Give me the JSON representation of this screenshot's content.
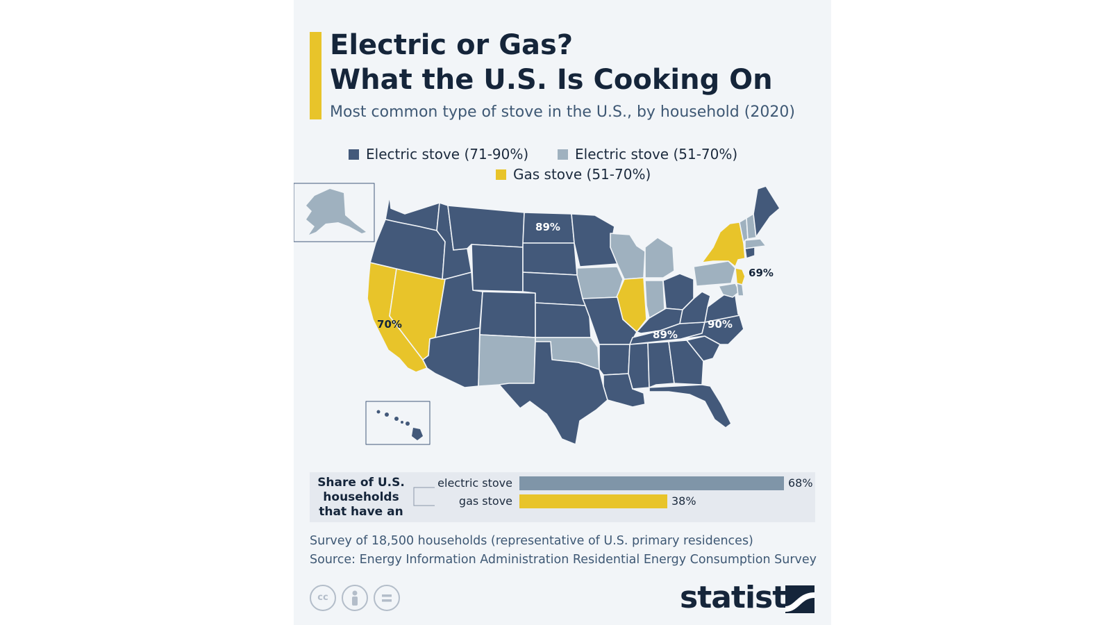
{
  "header": {
    "title_line1": "Electric or Gas?",
    "title_line2": "What the U.S. Is Cooking On",
    "subtitle": "Most common type of stove in the U.S., by household (2020)"
  },
  "legend": [
    {
      "label": "Electric stove (71-90%)",
      "color": "#43597a"
    },
    {
      "label": "Electric stove (51-70%)",
      "color": "#9fb1bf"
    },
    {
      "label": "Gas stove (51-70%)",
      "color": "#e8c42a"
    }
  ],
  "map": {
    "callouts": [
      {
        "region": "North Dakota",
        "label": "89%"
      },
      {
        "region": "California",
        "label": "70%"
      },
      {
        "region": "New Jersey",
        "label": "69%"
      },
      {
        "region": "Tennessee",
        "label": "89%"
      },
      {
        "region": "North Carolina",
        "label": "90%"
      }
    ],
    "categories": {
      "electric_high": [
        "Washington",
        "Oregon",
        "Idaho",
        "Montana",
        "Wyoming",
        "Utah",
        "Arizona",
        "Colorado",
        "North Dakota",
        "South Dakota",
        "Nebraska",
        "Kansas",
        "Minnesota",
        "Missouri",
        "Arkansas",
        "Louisiana",
        "Texas",
        "Mississippi",
        "Alabama",
        "Georgia",
        "Florida",
        "South Carolina",
        "North Carolina",
        "Virginia",
        "West Virginia",
        "Tennessee",
        "Kentucky",
        "Ohio",
        "Maine",
        "Connecticut",
        "Hawaii"
      ],
      "electric_mid": [
        "Alaska",
        "New Mexico",
        "Oklahoma",
        "Iowa",
        "Wisconsin",
        "Michigan",
        "Indiana",
        "Pennsylvania",
        "Vermont",
        "New Hampshire",
        "Massachusetts",
        "Maryland",
        "Delaware"
      ],
      "gas": [
        "California",
        "Nevada",
        "Illinois",
        "New York",
        "New Jersey"
      ]
    }
  },
  "share": {
    "label": "Share of U.S. households that have an",
    "rows": [
      {
        "label": "electric stove",
        "value": 68,
        "value_text": "68%",
        "color": "#7f95a8"
      },
      {
        "label": "gas stove",
        "value": 38,
        "value_text": "38%",
        "color": "#e8c42a"
      }
    ]
  },
  "notes": {
    "survey": "Survey of 18,500 households (representative of U.S. primary residences)",
    "source": "Source: Energy Information Administration Residential Energy Consumption Survey"
  },
  "footer": {
    "license_icons": [
      "creative-commons-icon",
      "attribution-person-icon",
      "no-derivatives-icon"
    ],
    "cc_text": "cc",
    "brand": "statista"
  }
}
